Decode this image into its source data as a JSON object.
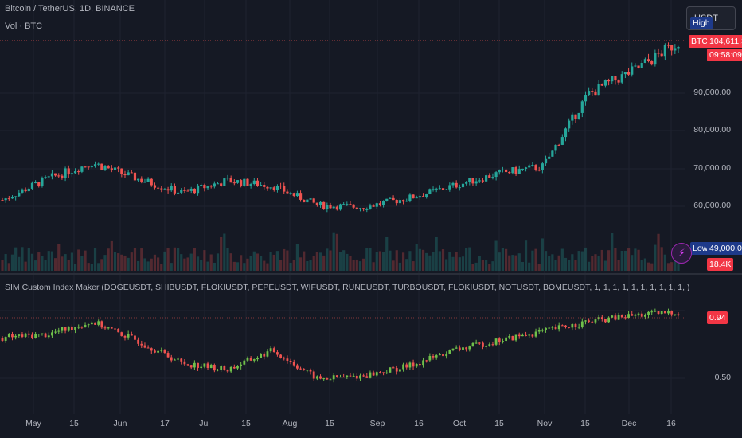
{
  "header": {
    "symbol_title": "Bitcoin / TetherUS, 1D, BINANCE",
    "volume_title": "Vol · BTC",
    "currency": "USDT"
  },
  "price_axis": {
    "labels": [
      "90,000.00",
      "80,000.00",
      "70,000.00",
      "60,000.00"
    ],
    "high_tag": "High",
    "symbol_tag": "BTCUSDT",
    "last_price": "104,611.35",
    "countdown": "09:58:09",
    "low_tag": "Low",
    "low_price": "49,000.00",
    "volume_value": "18.4K"
  },
  "indicator": {
    "title": "SIM Custom Index Maker (DOGEUSDT, SHIBUSDT, FLOKIUSDT, PEPEUSDT, WIFUSDT, RUNEUSDT, TURBOUSDT, FLOKIUSDT, NOTUSDT, BOMEUSDT, 1, 1, 1, 1, 1, 1, 1, 1, 1, 1, )",
    "axis_labels": [
      "0.50"
    ],
    "last_value": "0.94"
  },
  "time_axis": [
    "May",
    "15",
    "Jun",
    "17",
    "Jul",
    "15",
    "Aug",
    "15",
    "Sep",
    "16",
    "Oct",
    "15",
    "Nov",
    "15",
    "Dec",
    "16"
  ],
  "colors": {
    "up": "#26a69a",
    "down": "#ef5350",
    "grid": "#1f2330",
    "ind_up": "#6fbf4a",
    "ind_down": "#ef5350"
  },
  "chart_data": [
    {
      "type": "candlestick",
      "title": "Bitcoin / TetherUS, 1D, BINANCE",
      "x": [
        "May 1",
        "May 15",
        "Jun 1",
        "Jun 17",
        "Jul 1",
        "Jul 15",
        "Aug 1",
        "Aug 15",
        "Sep 1",
        "Sep 16",
        "Oct 1",
        "Oct 15",
        "Nov 1",
        "Nov 15",
        "Dec 1",
        "Dec 16"
      ],
      "close": [
        60000,
        66000,
        70500,
        66000,
        62000,
        65500,
        64000,
        58500,
        58000,
        60500,
        64000,
        67500,
        69500,
        90000,
        96500,
        104611.35
      ],
      "ylim": [
        49000,
        108000
      ],
      "high": 108000,
      "low": 49000
    },
    {
      "type": "candlestick",
      "title": "SIM Custom Index Maker",
      "x": [
        "May 1",
        "May 15",
        "Jun 1",
        "Jun 17",
        "Jul 1",
        "Jul 15",
        "Aug 1",
        "Aug 15",
        "Sep 1",
        "Sep 16",
        "Oct 1",
        "Oct 15",
        "Nov 1",
        "Nov 15",
        "Dec 1",
        "Dec 16"
      ],
      "close": [
        0.78,
        0.8,
        0.88,
        0.76,
        0.62,
        0.58,
        0.7,
        0.52,
        0.54,
        0.6,
        0.7,
        0.76,
        0.82,
        0.88,
        0.92,
        0.94
      ],
      "ylim": [
        0.4,
        1.1
      ]
    }
  ]
}
